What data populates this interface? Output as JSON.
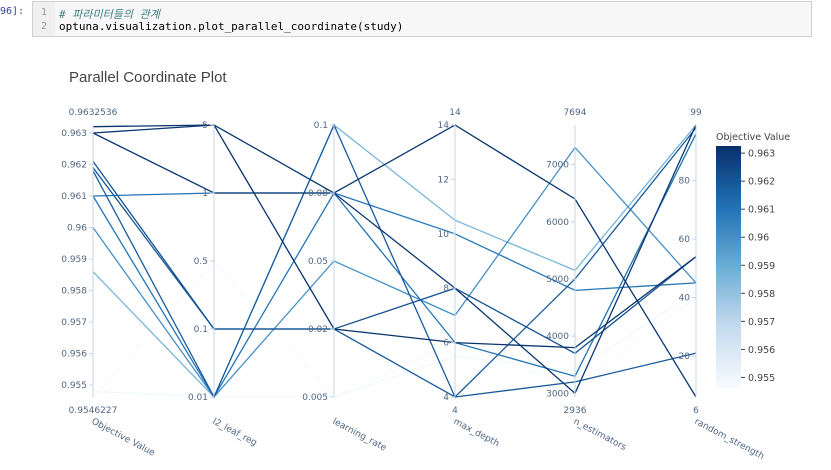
{
  "cell": {
    "prompt": "96]:",
    "lines": [
      {
        "no": "1",
        "text": "# 파라미터들의 관계"
      },
      {
        "no": "2",
        "text": "optuna.visualization.plot_parallel_coordinate(study)"
      }
    ]
  },
  "chart_data": {
    "type": "parallel_coordinates",
    "title": "Parallel Coordinate Plot",
    "colorscale": [
      "#f7fbff",
      "#08306b"
    ],
    "colorbar": {
      "title": "Objective Value",
      "ticks": [
        "0.963",
        "0.962",
        "0.961",
        "0.96",
        "0.959",
        "0.958",
        "0.957",
        "0.956",
        "0.955"
      ]
    },
    "axes": [
      {
        "label": "Objective Value",
        "range_labels": [
          "0.9546227",
          "0.9632536"
        ],
        "ticks": [
          "0.963",
          "0.962",
          "0.961",
          "0.96",
          "0.959",
          "0.958",
          "0.957",
          "0.956",
          "0.955"
        ]
      },
      {
        "label": "l2_leaf_reg",
        "ticks": [
          "5",
          "1",
          "0.5",
          "0.1",
          "0.01"
        ]
      },
      {
        "label": "learning_rate",
        "ticks": [
          "0.1",
          "0.08",
          "0.05",
          "0.02",
          "0.005"
        ]
      },
      {
        "label": "max_depth",
        "range_labels": [
          "4",
          "14"
        ],
        "ticks": [
          "14",
          "12",
          "10",
          "8",
          "6",
          "4"
        ]
      },
      {
        "label": "n_estimators",
        "range_labels": [
          "2936",
          "7694"
        ],
        "ticks": [
          "7000",
          "6000",
          "5000",
          "4000",
          "3000"
        ]
      },
      {
        "label": "random_strength",
        "range_labels": [
          "6",
          "99"
        ],
        "ticks": [
          "80",
          "60",
          "40",
          "20"
        ]
      }
    ],
    "trials": [
      {
        "objective": 0.9632,
        "l2_leaf_reg": 5,
        "learning_rate": 0.02,
        "max_depth": 6,
        "n_estimators": 3800,
        "random_strength": 54
      },
      {
        "objective": 0.963,
        "l2_leaf_reg": 5,
        "learning_rate": 0.08,
        "max_depth": 8,
        "n_estimators": 3000,
        "random_strength": 99
      },
      {
        "objective": 0.963,
        "l2_leaf_reg": 1,
        "learning_rate": 0.08,
        "max_depth": 14,
        "n_estimators": 6400,
        "random_strength": 6
      },
      {
        "objective": 0.961,
        "l2_leaf_reg": 1,
        "learning_rate": 0.08,
        "max_depth": 10,
        "n_estimators": 4800,
        "random_strength": 45
      },
      {
        "objective": 0.9621,
        "l2_leaf_reg": 0.1,
        "learning_rate": 0.02,
        "max_depth": 8,
        "n_estimators": 3700,
        "random_strength": 54
      },
      {
        "objective": 0.9619,
        "l2_leaf_reg": 0.1,
        "learning_rate": 0.02,
        "max_depth": 4,
        "n_estimators": 3200,
        "random_strength": 21
      },
      {
        "objective": 0.961,
        "l2_leaf_reg": 0.01,
        "learning_rate": 0.08,
        "max_depth": 6,
        "n_estimators": 3300,
        "random_strength": 96
      },
      {
        "objective": 0.9618,
        "l2_leaf_reg": 0.01,
        "learning_rate": 0.1,
        "max_depth": 4,
        "n_estimators": 5000,
        "random_strength": 98
      },
      {
        "objective": 0.96,
        "l2_leaf_reg": 0.01,
        "learning_rate": 0.05,
        "max_depth": 7,
        "n_estimators": 7300,
        "random_strength": 45
      },
      {
        "objective": 0.9586,
        "l2_leaf_reg": 0.01,
        "learning_rate": 0.1,
        "max_depth": 10.5,
        "n_estimators": 5150,
        "random_strength": 99
      },
      {
        "objective": 0.9546,
        "l2_leaf_reg": 0.5,
        "learning_rate": 0.005,
        "max_depth": 6,
        "n_estimators": 3100,
        "random_strength": 40
      },
      {
        "objective": 0.9548,
        "l2_leaf_reg": 0.01,
        "learning_rate": 0.005,
        "max_depth": 5.5,
        "n_estimators": 3400,
        "random_strength": 42
      }
    ]
  }
}
